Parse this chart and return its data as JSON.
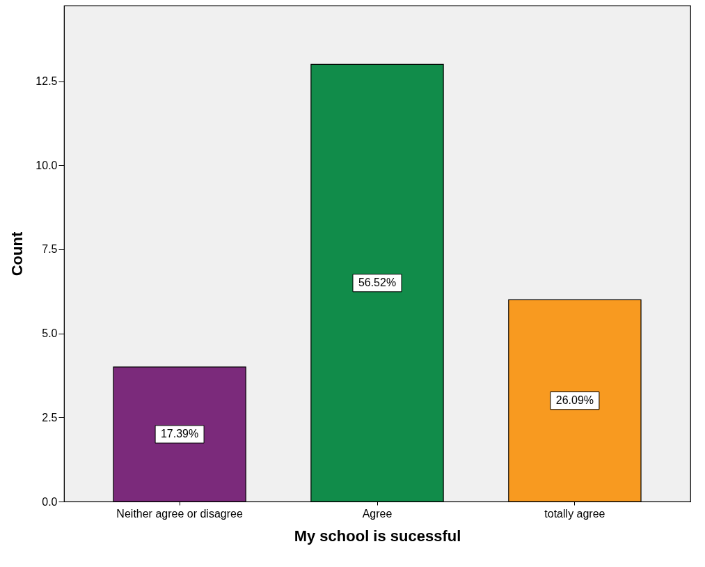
{
  "chart_data": {
    "type": "bar",
    "xlabel": "My school is sucessful",
    "ylabel": "Count",
    "categories": [
      "Neither agree or disagree",
      "Agree",
      "totally agree"
    ],
    "values": [
      4,
      13,
      6
    ],
    "colors": [
      "#7b2a7b",
      "#118c4a",
      "#f89a20"
    ],
    "annotations": [
      "17.39%",
      "56.52%",
      "26.09%"
    ],
    "ylim": [
      0,
      14.75
    ],
    "yticks": [
      {
        "value": 0,
        "label": "0.0"
      },
      2.5,
      {
        "value": 5,
        "label": "5.0"
      },
      7.5,
      {
        "value": 10,
        "label": "10.0"
      },
      12.5
    ],
    "grid": false
  }
}
